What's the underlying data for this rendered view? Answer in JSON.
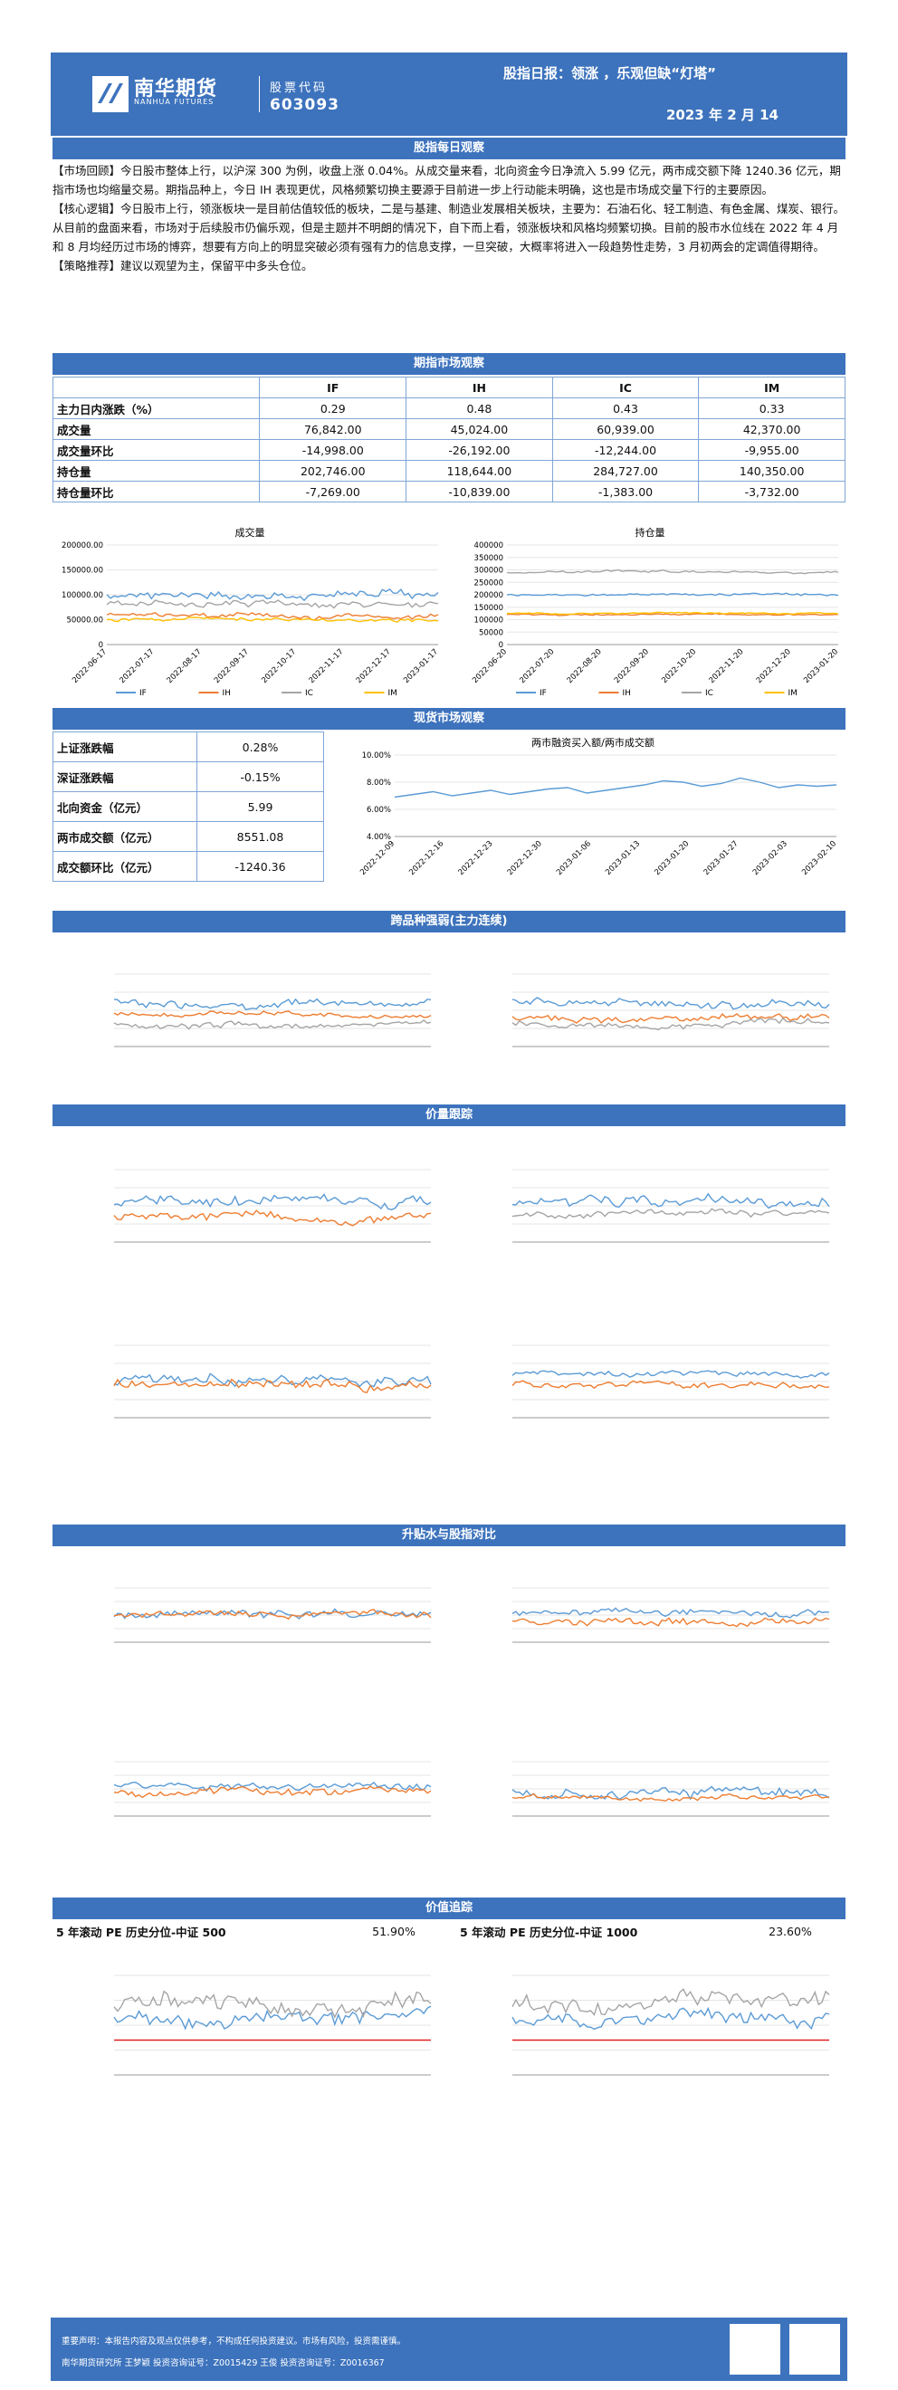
{
  "header": {
    "brand_cn": "南华期货",
    "brand_en": "NANHUA FUTURES",
    "code_label": "股票代码",
    "code": "603093",
    "title": "股指日报：领涨 ，乐观但缺“灯塔”",
    "date": "2023 年 2 月 14"
  },
  "sections": {
    "daily": "股指每日观察",
    "futures": "期指市场观察",
    "spot": "现货市场观察",
    "cross": "跨品种强弱(主力连续)",
    "price": "价量跟踪",
    "basis": "升贴水与股指对比",
    "value": "价值追踪"
  },
  "text": {
    "review_tag": "【市场回顾】",
    "review": "今日股市整体上行，以沪深 300 为例，收盘上涨 0.04%。从成交量来看，北向资金今日净流入 5.99 亿元，两市成交额下降 1240.36 亿元，期指市场也均缩量交易。期指品种上，今日 IH 表现更优，风格频繁切换主要源于目前进一步上行动能未明确，这也是市场成交量下行的主要原因。",
    "logic_tag": "【核心逻辑】",
    "logic": "今日股市上行，领涨板块一是目前估值较低的板块，二是与基建、制造业发展相关板块，主要为：石油石化、轻工制造、有色金属、煤炭、银行。从目前的盘面来看，市场对于后续股市仍偏乐观，但是主题并不明朗的情况下，自下而上看，领涨板块和风格均频繁切换。目前的股市水位线在 2022 年 4 月和 8 月均经历过市场的博弈，想要有方向上的明显突破必须有强有力的信息支撑，一旦突破，大概率将进入一段趋势性走势，3 月初两会的定调值得期待。",
    "strategy_tag": "【策略推荐】",
    "strategy": "建议以观望为主，保留平中多头仓位。"
  },
  "futures_table": {
    "headers": [
      "",
      "IF",
      "IH",
      "IC",
      "IM"
    ],
    "rows": [
      {
        "label": "主力日内涨跌（%）",
        "values": [
          "0.29",
          "0.48",
          "0.43",
          "0.33"
        ]
      },
      {
        "label": "成交量",
        "values": [
          "76,842.00",
          "45,024.00",
          "60,939.00",
          "42,370.00"
        ]
      },
      {
        "label": "成交量环比",
        "values": [
          "-14,998.00",
          "-26,192.00",
          "-12,244.00",
          "-9,955.00"
        ]
      },
      {
        "label": "持仓量",
        "values": [
          "202,746.00",
          "118,644.00",
          "284,727.00",
          "140,350.00"
        ]
      },
      {
        "label": "持仓量环比",
        "values": [
          "-7,269.00",
          "-10,839.00",
          "-1,383.00",
          "-3,732.00"
        ]
      }
    ]
  },
  "spot_table": {
    "rows": [
      {
        "label": "上证涨跌幅",
        "value": "0.28%"
      },
      {
        "label": "深证涨跌幅",
        "value": "-0.15%"
      },
      {
        "label": "北向资金（亿元）",
        "value": "5.99"
      },
      {
        "label": "两市成交额（亿元）",
        "value": "8551.08"
      },
      {
        "label": "成交额环比（亿元）",
        "value": "-1240.36"
      }
    ]
  },
  "value_row": [
    {
      "label": "5 年滚动 PE 历史分位-中证 500",
      "value": "51.90%"
    },
    {
      "label": "5 年滚动 PE 历史分位-中证 1000",
      "value": "23.60%"
    }
  ],
  "footer": {
    "disclaimer": "重要声明：本报告内容及观点仅供参考，不构成任何投资建议。市场有风险，投资需谨慎。",
    "author": "南华期货研究所  王梦颖  投资咨询证号：Z0015429     王俊  投资咨询证号：Z0016367"
  },
  "colors": {
    "IF": "#5b9bd5",
    "IH": "#ed7d31",
    "IC": "#a5a5a5",
    "IM": "#ffc000",
    "brand": "#3d73bd"
  },
  "chart_data": [
    {
      "id": "volume",
      "type": "line",
      "title": "成交量",
      "ylim": [
        0,
        200000
      ],
      "yticks": [
        "0",
        "50000.00",
        "100000.00",
        "150000.00",
        "200000.00"
      ],
      "xticks": [
        "2022-06-17",
        "2022-07-17",
        "2022-08-17",
        "2022-09-17",
        "2022-10-17",
        "2022-11-17",
        "2022-12-17",
        "2023-01-17"
      ],
      "series": [
        {
          "name": "IF",
          "base": 100000,
          "amp": 22000
        },
        {
          "name": "IH",
          "base": 58000,
          "amp": 14000
        },
        {
          "name": "IC",
          "base": 82000,
          "amp": 18000
        },
        {
          "name": "IM",
          "base": 50000,
          "amp": 10000
        }
      ]
    },
    {
      "id": "oi",
      "type": "line",
      "title": "持仓量",
      "ylim": [
        0,
        400000
      ],
      "yticks": [
        "0",
        "50000",
        "100000",
        "150000",
        "200000",
        "250000",
        "300000",
        "350000",
        "400000"
      ],
      "xticks": [
        "2022-06-20",
        "2022-07-20",
        "2022-08-20",
        "2022-09-20",
        "2022-10-20",
        "2022-11-20",
        "2022-12-20",
        "2023-01-20"
      ],
      "series": [
        {
          "name": "IF",
          "base": 200000,
          "amp": 12000
        },
        {
          "name": "IH",
          "base": 120000,
          "amp": 8000
        },
        {
          "name": "IC",
          "base": 290000,
          "amp": 12000
        },
        {
          "name": "IM",
          "base": 125000,
          "amp": 8000
        }
      ]
    },
    {
      "id": "margin",
      "type": "line",
      "title": "两市融资买入额/两市成交额",
      "ylim": [
        4,
        10
      ],
      "yticks": [
        "4.00%",
        "6.00%",
        "8.00%",
        "10.00%"
      ],
      "xticks": [
        "2022-12-09",
        "2022-12-16",
        "2022-12-23",
        "2022-12-30",
        "2023-01-06",
        "2023-01-13",
        "2023-01-20",
        "2023-01-27",
        "2023-02-03",
        "2023-02-10"
      ],
      "series": [
        {
          "name": "融资买入占比",
          "values": [
            6.9,
            7.1,
            7.3,
            7.0,
            7.2,
            7.4,
            7.1,
            7.3,
            7.5,
            7.6,
            7.2,
            7.4,
            7.6,
            7.8,
            8.1,
            8.0,
            7.7,
            7.9,
            8.3,
            8.0,
            7.6,
            7.8,
            7.7,
            7.8
          ]
        }
      ]
    }
  ]
}
